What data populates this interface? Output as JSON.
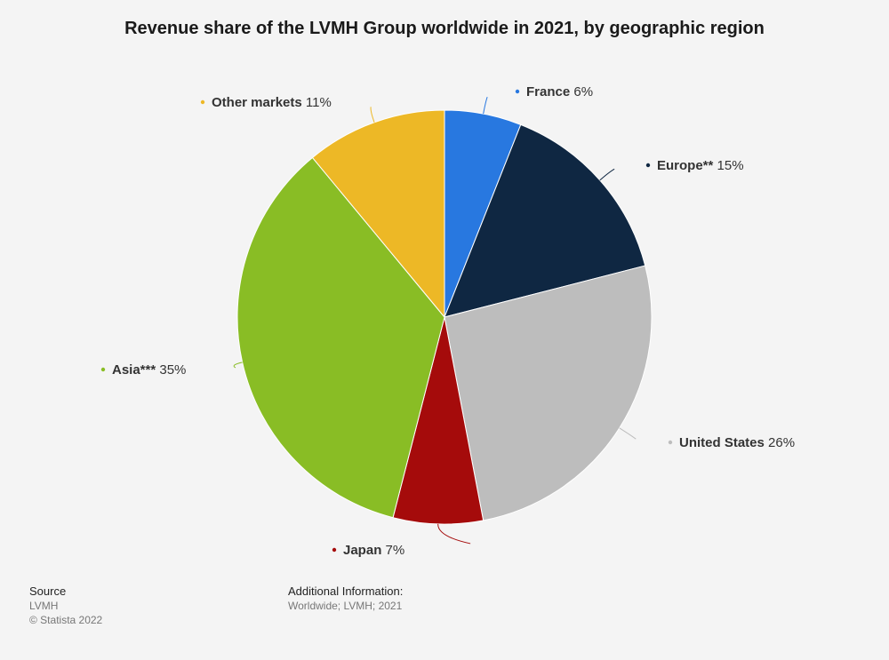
{
  "chart_data": {
    "type": "pie",
    "title": "Revenue share of the LVMH Group worldwide in 2021, by geographic region",
    "unit": "%",
    "slices": [
      {
        "label": "France",
        "value": 6,
        "color": "#2878e0"
      },
      {
        "label": "Europe**",
        "value": 15,
        "color": "#0f2742"
      },
      {
        "label": "United States",
        "value": 26,
        "color": "#bdbdbd"
      },
      {
        "label": "Japan",
        "value": 7,
        "color": "#a50b0b"
      },
      {
        "label": "Asia***",
        "value": 35,
        "color": "#89bd25"
      },
      {
        "label": "Other markets",
        "value": 11,
        "color": "#edb826"
      }
    ]
  },
  "footer": {
    "source_heading": "Source",
    "source": "LVMH",
    "copyright": "© Statista 2022",
    "additional_heading": "Additional Information:",
    "additional": "Worldwide; LVMH; 2021"
  }
}
